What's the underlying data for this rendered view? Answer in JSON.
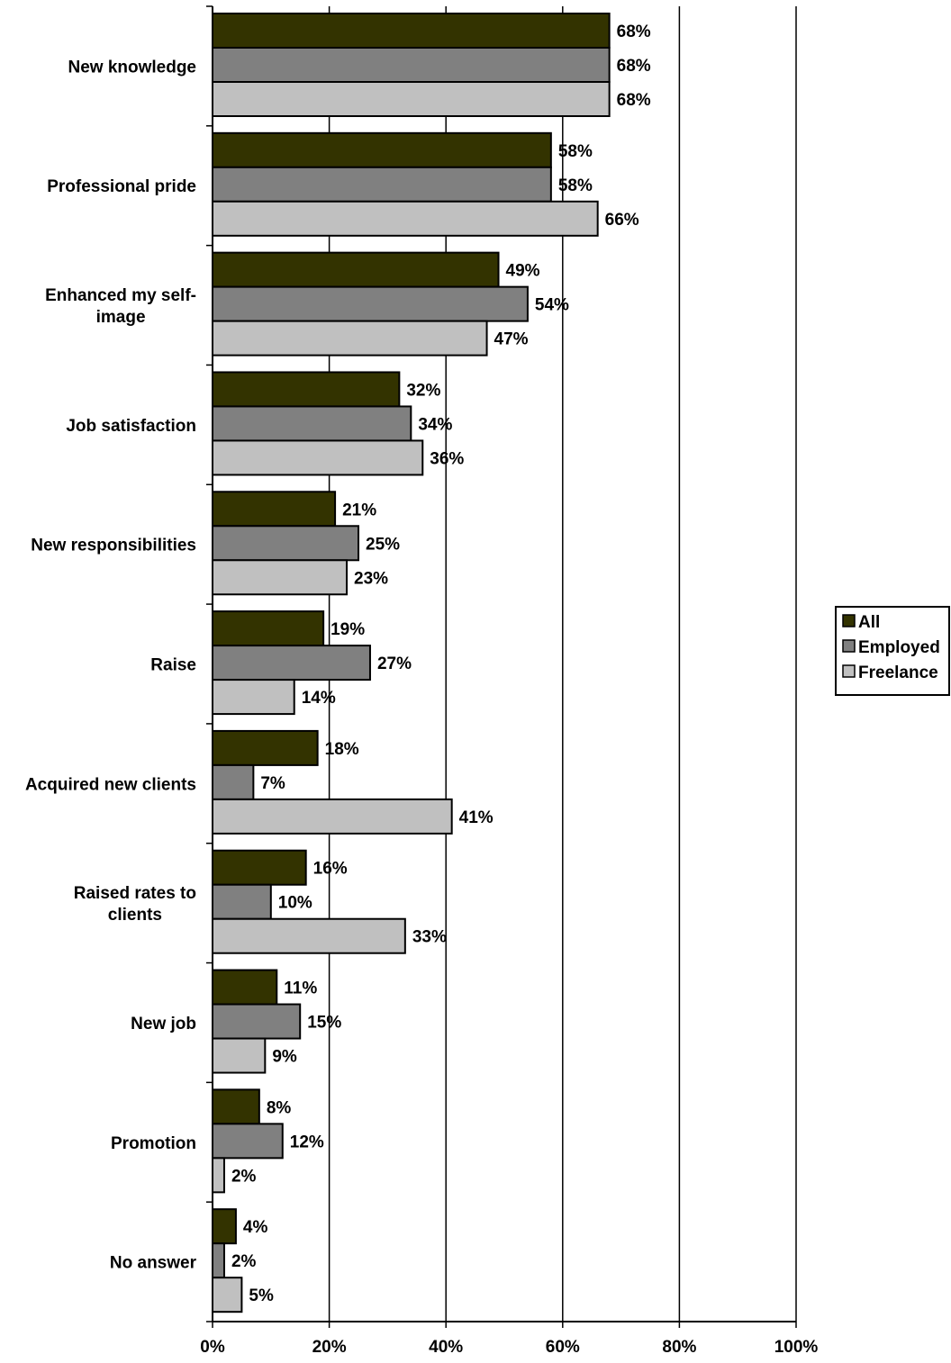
{
  "chart_data": {
    "type": "bar",
    "orientation": "horizontal",
    "title": "",
    "xlabel": "",
    "ylabel": "",
    "xlim": [
      0,
      100
    ],
    "x_ticks": [
      "0%",
      "20%",
      "40%",
      "60%",
      "80%",
      "100%"
    ],
    "categories": [
      "New knowledge",
      "Professional pride",
      "Enhanced my self-image",
      "Job satisfaction",
      "New responsibilities",
      "Raise",
      "Acquired new clients",
      "Raised rates to clients",
      "New job",
      "Promotion",
      "No answer"
    ],
    "category_label_lines": [
      [
        "New knowledge"
      ],
      [
        "Professional pride"
      ],
      [
        "Enhanced my self-",
        "image"
      ],
      [
        "Job satisfaction"
      ],
      [
        "New responsibilities"
      ],
      [
        "Raise"
      ],
      [
        "Acquired new clients"
      ],
      [
        "Raised rates to",
        "clients"
      ],
      [
        "New job"
      ],
      [
        "Promotion"
      ],
      [
        "No answer"
      ]
    ],
    "series": [
      {
        "name": "All",
        "color": "#333300",
        "values": [
          68,
          58,
          49,
          32,
          21,
          19,
          18,
          16,
          11,
          8,
          4
        ],
        "labels": [
          "68%",
          "58%",
          "49%",
          "32%",
          "21%",
          "19%",
          "18%",
          "16%",
          "11%",
          "8%",
          "4%"
        ]
      },
      {
        "name": "Employed",
        "color": "#808080",
        "values": [
          68,
          58,
          54,
          34,
          25,
          27,
          7,
          10,
          15,
          12,
          2
        ],
        "labels": [
          "68%",
          "58%",
          "54%",
          "34%",
          "25%",
          "27%",
          "7%",
          "10%",
          "15%",
          "12%",
          "2%"
        ]
      },
      {
        "name": "Freelance",
        "color": "#c0c0c0",
        "values": [
          68,
          66,
          47,
          36,
          23,
          14,
          41,
          33,
          9,
          2,
          5
        ],
        "labels": [
          "68%",
          "66%",
          "47%",
          "36%",
          "23%",
          "14%",
          "41%",
          "33%",
          "9%",
          "2%",
          "5%"
        ]
      }
    ],
    "grid": true,
    "legend": {
      "position": "right",
      "entries": [
        "All",
        "Employed",
        "Freelance"
      ]
    }
  }
}
